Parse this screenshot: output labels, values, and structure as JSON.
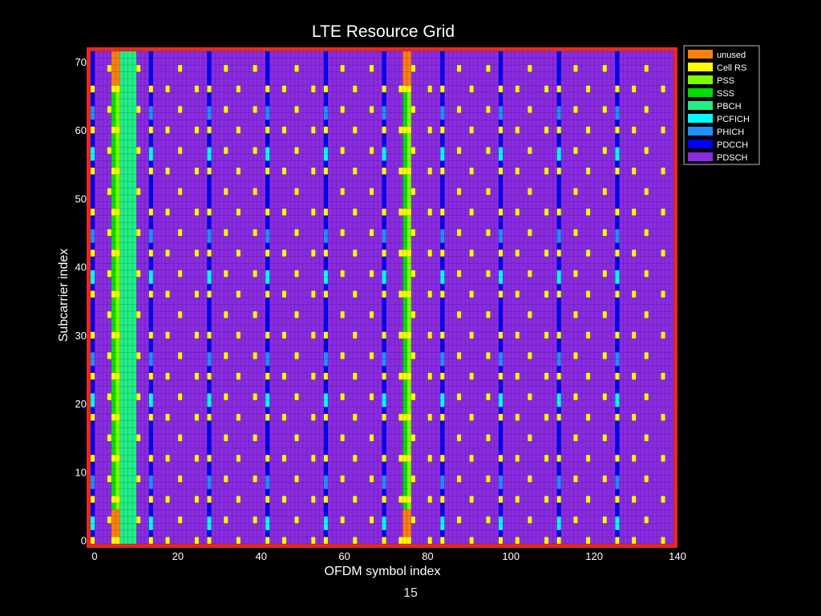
{
  "slide": {
    "page_number": "15"
  },
  "chart_data": {
    "type": "heatmap",
    "title": "LTE Resource Grid",
    "xlabel": "OFDM symbol index",
    "ylabel": "Subcarrier index",
    "xlim": [
      0,
      140
    ],
    "ylim": [
      0,
      72
    ],
    "x_ticks": [
      0,
      20,
      40,
      60,
      80,
      100,
      120,
      140
    ],
    "y_ticks": [
      0,
      10,
      20,
      30,
      40,
      50,
      60,
      70
    ],
    "grid": true,
    "legend_position": "right, outside top",
    "background_class": "PDSCH",
    "border_color": "#e8281f",
    "classes": [
      {
        "name": "unused",
        "color": "#ff7f0e"
      },
      {
        "name": "Cell RS",
        "color": "#ffff00"
      },
      {
        "name": "PSS",
        "color": "#7fff00"
      },
      {
        "name": "SSS",
        "color": "#00dd00"
      },
      {
        "name": "PBCH",
        "color": "#22ee88"
      },
      {
        "name": "PCFICH",
        "color": "#00ffff"
      },
      {
        "name": "PHICH",
        "color": "#1e90ff"
      },
      {
        "name": "PDCCH",
        "color": "#0000ee"
      },
      {
        "name": "PDSCH",
        "color": "#8a2be2"
      }
    ],
    "regions": [
      {
        "class": "PBCH",
        "symbols": [
          5,
          10
        ],
        "subcarriers": [
          0,
          71
        ]
      },
      {
        "class": "SSS",
        "symbols": [
          5,
          5
        ],
        "subcarriers": [
          5,
          66
        ]
      },
      {
        "class": "unused",
        "symbols": [
          5,
          5
        ],
        "subcarriers": [
          0,
          4
        ]
      },
      {
        "class": "unused",
        "symbols": [
          5,
          5
        ],
        "subcarriers": [
          67,
          71
        ]
      },
      {
        "class": "PSS",
        "symbols": [
          6,
          6
        ],
        "subcarriers": [
          5,
          66
        ]
      },
      {
        "class": "unused",
        "symbols": [
          6,
          6
        ],
        "subcarriers": [
          0,
          4
        ]
      },
      {
        "class": "unused",
        "symbols": [
          6,
          6
        ],
        "subcarriers": [
          67,
          71
        ]
      },
      {
        "class": "SSS",
        "symbols": [
          75,
          75
        ],
        "subcarriers": [
          5,
          66
        ]
      },
      {
        "class": "unused",
        "symbols": [
          75,
          75
        ],
        "subcarriers": [
          0,
          4
        ]
      },
      {
        "class": "unused",
        "symbols": [
          75,
          75
        ],
        "subcarriers": [
          67,
          71
        ]
      },
      {
        "class": "PSS",
        "symbols": [
          76,
          76
        ],
        "subcarriers": [
          5,
          66
        ]
      },
      {
        "class": "unused",
        "symbols": [
          76,
          76
        ],
        "subcarriers": [
          0,
          4
        ]
      },
      {
        "class": "unused",
        "symbols": [
          76,
          76
        ],
        "subcarriers": [
          67,
          71
        ]
      }
    ],
    "control_symbols": [
      0,
      14,
      28,
      42,
      56,
      70,
      84,
      98,
      112,
      126
    ],
    "control_pattern": {
      "base_class": "PDCCH",
      "cell_rs_subcarriers": [
        0,
        6,
        12,
        18,
        24,
        30,
        36,
        42,
        48,
        54,
        60,
        66
      ],
      "pcfich_subcarriers": [
        2,
        3,
        20,
        21,
        38,
        39,
        56,
        57
      ],
      "phich_subcarriers": [
        8,
        9,
        26,
        27,
        44,
        45,
        62,
        63
      ]
    },
    "cell_rs": {
      "symbols": [
        4,
        7,
        11,
        18,
        21,
        25,
        32,
        35,
        39,
        46,
        49,
        53,
        60,
        63,
        67,
        74,
        77,
        81,
        88,
        91,
        95,
        102,
        105,
        109,
        116,
        119,
        123,
        130,
        133,
        137
      ],
      "subcarrier_start": 3,
      "subcarrier_step": 6,
      "alternate_offset": 3
    }
  }
}
